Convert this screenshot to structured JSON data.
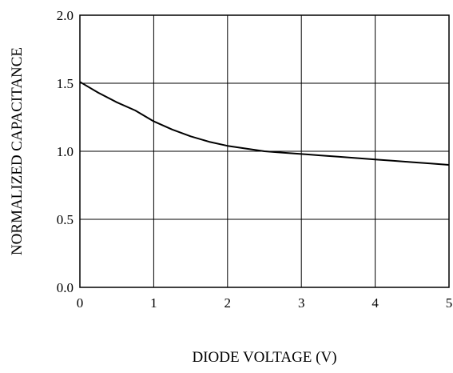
{
  "chart_data": {
    "type": "line",
    "title": "",
    "xlabel": "DIODE VOLTAGE  (V)",
    "ylabel": "NORMALIZED CAPACITANCE",
    "xlim": [
      0,
      5
    ],
    "ylim": [
      0.0,
      2.0
    ],
    "x_ticks": [
      "0",
      "1",
      "2",
      "3",
      "4",
      "5"
    ],
    "y_ticks": [
      "0.0",
      "0.5",
      "1.0",
      "1.5",
      "2.0"
    ],
    "grid": true,
    "legend": "none",
    "line_color": "#000000",
    "series": [
      {
        "x": [
          0,
          0.25,
          0.5,
          0.75,
          1.0,
          1.25,
          1.5,
          1.75,
          2.0,
          2.25,
          2.5,
          2.75,
          3.0,
          3.25,
          3.5,
          3.75,
          4.0,
          4.25,
          4.5,
          4.75,
          5.0
        ],
        "y": [
          1.51,
          1.43,
          1.36,
          1.3,
          1.22,
          1.16,
          1.11,
          1.07,
          1.04,
          1.02,
          1.0,
          0.99,
          0.98,
          0.97,
          0.96,
          0.95,
          0.94,
          0.93,
          0.92,
          0.91,
          0.9
        ]
      }
    ]
  }
}
